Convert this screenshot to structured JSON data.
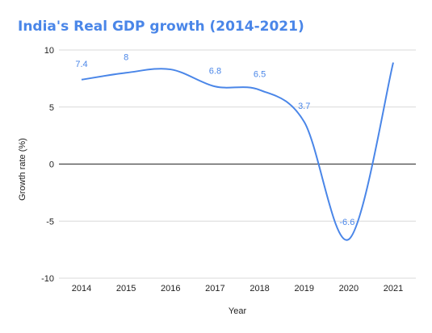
{
  "chart_data": {
    "type": "line",
    "title": "India's Real GDP growth (2014-2021)",
    "xlabel": "Year",
    "ylabel": "Growth rate (%)",
    "categories": [
      "2014",
      "2015",
      "2016",
      "2017",
      "2018",
      "2019",
      "2020",
      "2021"
    ],
    "series": [
      {
        "values": [
          7.4,
          8.0,
          8.3,
          6.8,
          6.5,
          3.7,
          -6.6,
          8.9
        ],
        "data_labels": [
          "7.4",
          "8",
          "",
          "6.8",
          "6.5",
          "3.7",
          "-6.6",
          ""
        ],
        "color": "#4a86e8"
      }
    ],
    "ylim": [
      -10,
      10
    ],
    "yticks": [
      -10,
      -5,
      0,
      5,
      10
    ],
    "yticklabels": [
      "-10",
      "-5",
      "0",
      "5",
      "10"
    ],
    "grid": true,
    "smooth": true,
    "legend": "none"
  }
}
